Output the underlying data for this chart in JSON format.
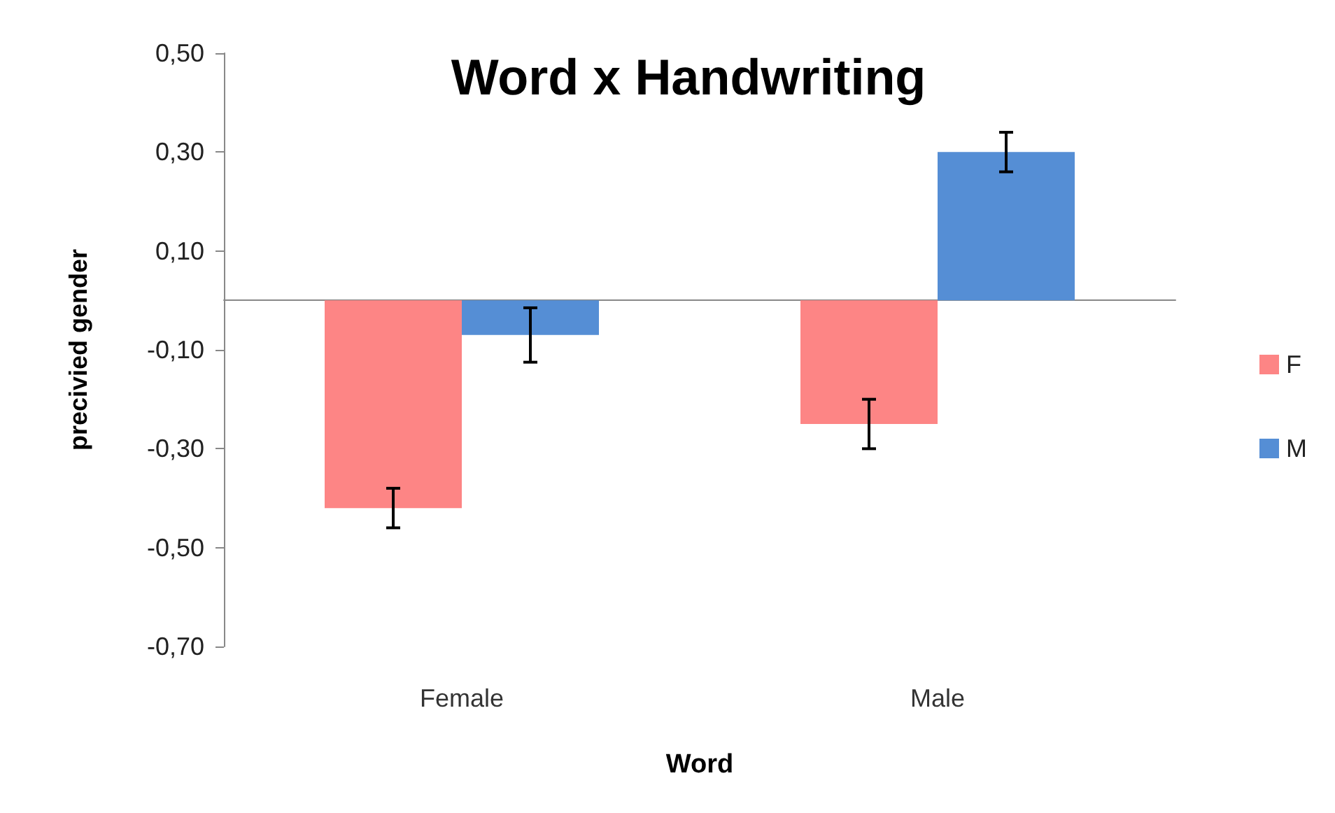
{
  "chart_data": {
    "type": "bar",
    "title": "Word x Handwriting",
    "xlabel": "Word",
    "ylabel": "precivied gender",
    "categories": [
      "Female",
      "Male"
    ],
    "series": [
      {
        "name": "F",
        "color": "#fd8585",
        "values": [
          -0.42,
          -0.25
        ],
        "errors": [
          0.04,
          0.05
        ]
      },
      {
        "name": "M",
        "color": "#558ed5",
        "values": [
          -0.07,
          0.3
        ],
        "errors": [
          0.055,
          0.04
        ]
      }
    ],
    "ylim": [
      -0.7,
      0.5
    ],
    "yticks": [
      {
        "value": -0.7,
        "label": "-0,70"
      },
      {
        "value": -0.5,
        "label": "-0,50"
      },
      {
        "value": -0.3,
        "label": "-0,30"
      },
      {
        "value": -0.1,
        "label": "-0,10"
      },
      {
        "value": 0.1,
        "label": "0,10"
      },
      {
        "value": 0.3,
        "label": "0,30"
      },
      {
        "value": 0.5,
        "label": "0,50"
      }
    ],
    "grid": false,
    "legend": "right"
  }
}
